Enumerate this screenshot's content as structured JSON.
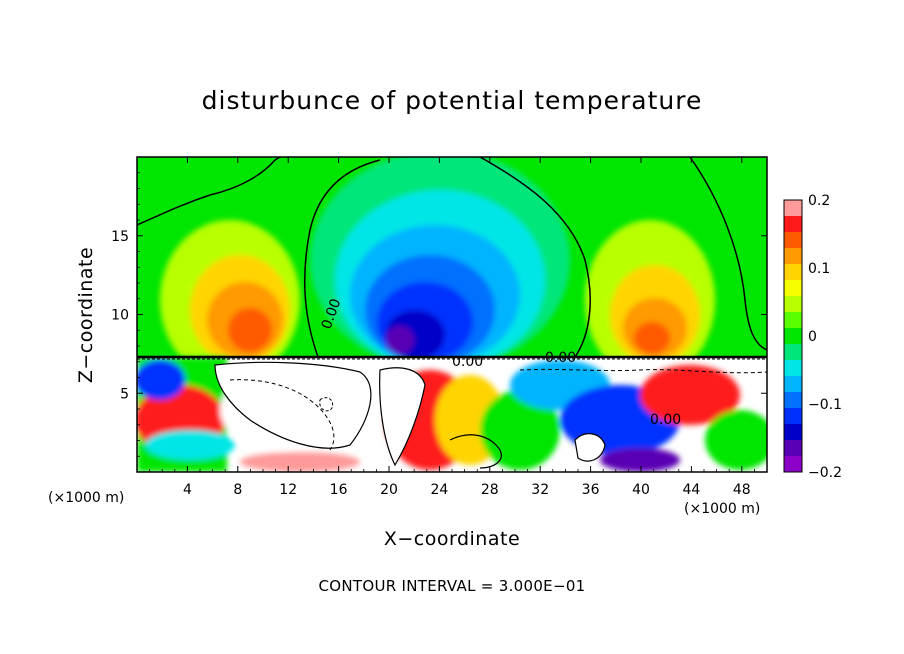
{
  "chart_data": {
    "type": "heatmap",
    "title": "disturbunce of potential temperature",
    "xlabel": "X−coordinate",
    "ylabel": "Z−coordinate",
    "x_unit": "(×1000 m)",
    "x_unit_right": "(×1000 m)",
    "contour_interval_text": "CONTOUR INTERVAL = 3.000E−01",
    "xlim": [
      0,
      50
    ],
    "ylim": [
      0,
      20
    ],
    "x_ticks": [
      4,
      8,
      12,
      16,
      20,
      24,
      28,
      32,
      36,
      40,
      44,
      48
    ],
    "y_ticks": [
      5,
      10,
      15
    ],
    "colorbar": {
      "min": -0.2,
      "max": 0.2,
      "ticks": [
        0.2,
        0.1,
        0,
        -0.1,
        -0.2
      ],
      "tick_labels": [
        "0.2",
        "0.1",
        "0",
        "−0.1",
        "−0.2"
      ],
      "colors": [
        "#ff9a9a",
        "#ff1a1a",
        "#ff5a00",
        "#ff9a00",
        "#ffd400",
        "#f5ff00",
        "#b8ff00",
        "#5aff00",
        "#00e600",
        "#00e67a",
        "#00e6e6",
        "#00b4ff",
        "#0070ff",
        "#0030ff",
        "#0000c8",
        "#5a00b4",
        "#8c00c8"
      ]
    },
    "contour_labels": [
      "0.00",
      "0.00",
      "0.00",
      "0.00"
    ],
    "tropopause_z": 7.3
  }
}
